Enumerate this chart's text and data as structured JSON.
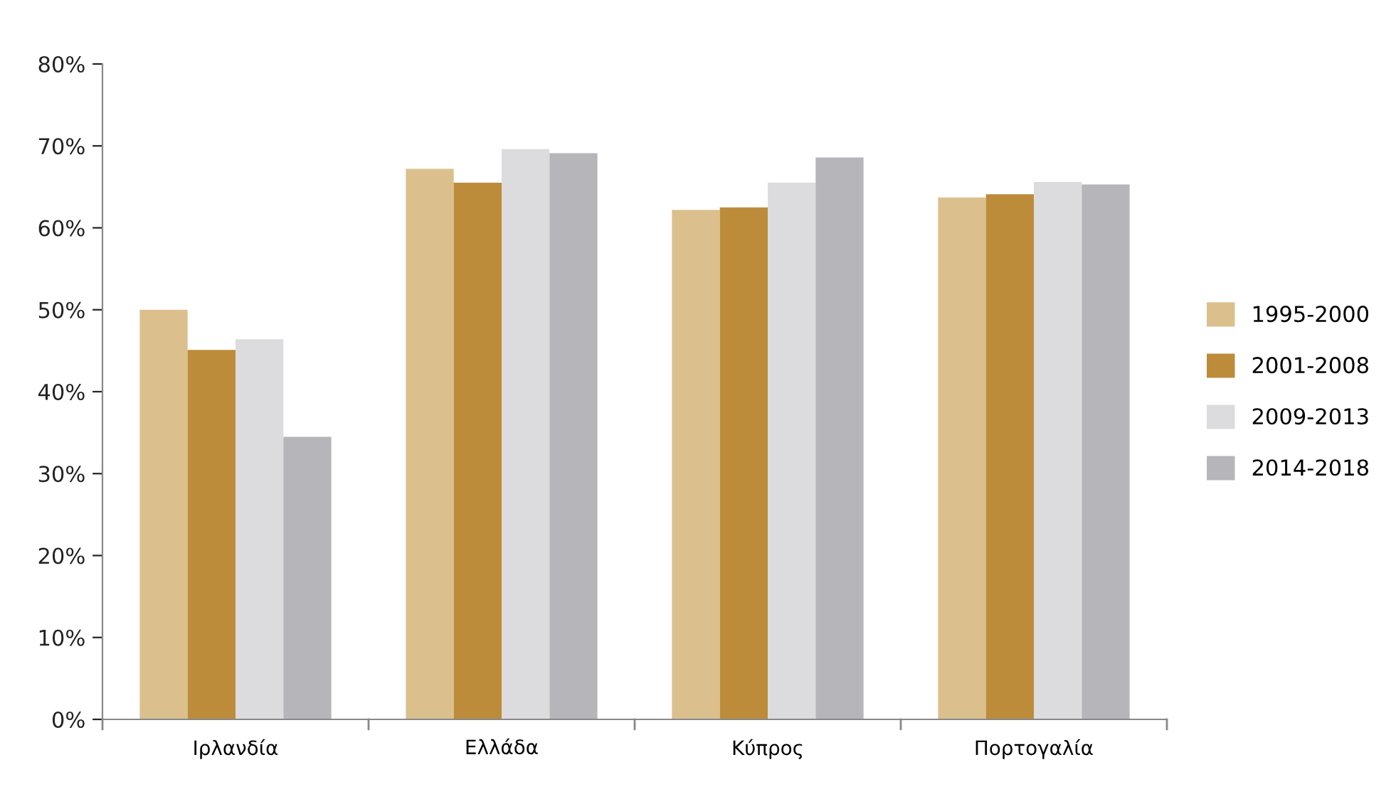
{
  "chart_data": {
    "type": "bar",
    "categories": [
      "Ιρλανδία",
      "Ελλάδα",
      "Κύπρος",
      "Πορτογαλία"
    ],
    "series": [
      {
        "name": "1995-2000",
        "color": "#dbc08e",
        "values": [
          50.0,
          67.2,
          62.2,
          63.7
        ]
      },
      {
        "name": "2001-2008",
        "color": "#bc8c3a",
        "values": [
          45.1,
          65.5,
          62.5,
          64.1
        ]
      },
      {
        "name": "2009-2013",
        "color": "#dcdcde",
        "values": [
          46.4,
          69.6,
          65.5,
          65.6
        ]
      },
      {
        "name": "2014-2018",
        "color": "#b6b6ba",
        "values": [
          34.5,
          69.1,
          68.6,
          65.3
        ]
      }
    ],
    "ylim": [
      0,
      80
    ],
    "yticks": [
      {
        "value": 0,
        "label": "0%"
      },
      {
        "value": 10,
        "label": "10%"
      },
      {
        "value": 20,
        "label": "20%"
      },
      {
        "value": 30,
        "label": "30%"
      },
      {
        "value": 40,
        "label": "40%"
      },
      {
        "value": 50,
        "label": "50%"
      },
      {
        "value": 60,
        "label": "60%"
      },
      {
        "value": 70,
        "label": "70%"
      },
      {
        "value": 80,
        "label": "80%"
      }
    ],
    "grid": false,
    "legend": "right"
  }
}
